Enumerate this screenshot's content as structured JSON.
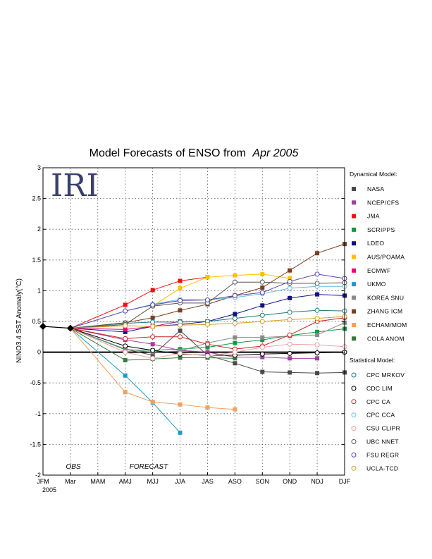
{
  "chart_data": {
    "type": "line",
    "title": "Model Forecasts of ENSO from",
    "title_date": "Apr 2005",
    "logo_text": "IRI",
    "ylabel": "NINO3.4 SST Anomaly(°C)",
    "xlabel": "",
    "year_label": "2005",
    "ylim": [
      -2,
      3
    ],
    "yticks": [
      "-2",
      "-1.5",
      "-1",
      "-0.5",
      "0",
      "0.5",
      "1",
      "1.5",
      "2",
      "2.5",
      "3"
    ],
    "categories": [
      "JFM",
      "Mar",
      "MAM",
      "AMJ",
      "MJJ",
      "JJA",
      "JAS",
      "ASO",
      "SON",
      "OND",
      "NDJ",
      "DJF"
    ],
    "grid": true,
    "annotations": [
      "OBS",
      "FORECAST"
    ],
    "observed": {
      "x": [
        0,
        1
      ],
      "values": [
        0.42,
        0.39
      ],
      "color": "#000000"
    },
    "legend_dynamical_title": "Dynamical Model:",
    "legend_statistical_title": "Statistical Model:",
    "series": [
      {
        "name": "NASA",
        "group": "dynamical",
        "color": "#4a4a4a",
        "values": [
          null,
          0.39,
          null,
          0.05,
          -0.05,
          0.35,
          -0.05,
          -0.18,
          -0.32,
          -0.33,
          -0.34,
          -0.33
        ]
      },
      {
        "name": "NCEP/CFS",
        "group": "dynamical",
        "color": "#a040a0",
        "values": [
          null,
          0.39,
          null,
          0.2,
          0.13,
          0.03,
          0.0,
          -0.08,
          -0.08,
          -0.1,
          -0.1,
          null
        ]
      },
      {
        "name": "JMA",
        "group": "dynamical",
        "color": "#ee1111",
        "values": [
          null,
          0.39,
          null,
          0.77,
          1.01,
          1.16,
          1.22,
          null,
          null,
          null,
          null,
          null
        ]
      },
      {
        "name": "SCRIPPS",
        "group": "dynamical",
        "color": "#119944",
        "values": [
          null,
          0.39,
          null,
          0.04,
          0.03,
          0.05,
          0.08,
          0.15,
          0.2,
          0.27,
          0.33,
          0.38
        ]
      },
      {
        "name": "LDEO",
        "group": "dynamical",
        "color": "#111188",
        "values": [
          null,
          0.39,
          null,
          0.33,
          0.42,
          0.45,
          0.5,
          0.62,
          0.76,
          0.88,
          0.94,
          0.92
        ]
      },
      {
        "name": "AUS/POAMA",
        "group": "dynamical",
        "color": "#ffc000",
        "values": [
          null,
          0.39,
          null,
          0.45,
          0.75,
          1.04,
          1.22,
          1.25,
          1.27,
          1.2,
          null,
          null
        ]
      },
      {
        "name": "ECMWF",
        "group": "dynamical",
        "color": "#ee0077",
        "values": [
          null,
          0.39,
          null,
          0.37,
          0.42,
          0.5,
          null,
          null,
          null,
          null,
          null,
          null
        ]
      },
      {
        "name": "UKMO",
        "group": "dynamical",
        "color": "#2299cc",
        "values": [
          null,
          0.39,
          null,
          -0.38,
          -0.82,
          -1.31,
          null,
          null,
          null,
          null,
          null,
          null
        ]
      },
      {
        "name": "KOREA SNU",
        "group": "dynamical",
        "color": "#8a8a8a",
        "values": [
          null,
          0.39,
          null,
          0.05,
          0.0,
          0.02,
          0.15,
          0.24,
          0.24,
          0.26,
          0.28,
          0.48
        ]
      },
      {
        "name": "ZHANG ICM",
        "group": "dynamical",
        "color": "#7a3f25",
        "values": [
          null,
          0.39,
          null,
          0.48,
          0.56,
          0.68,
          0.78,
          0.92,
          1.05,
          1.33,
          1.61,
          1.76
        ]
      },
      {
        "name": "ECHAM/MOM",
        "group": "dynamical",
        "color": "#f0a060",
        "values": [
          null,
          0.39,
          null,
          -0.65,
          -0.81,
          -0.85,
          -0.9,
          -0.93,
          null,
          null,
          null,
          null
        ]
      },
      {
        "name": "COLA ANOM",
        "group": "dynamical",
        "color": "#3a7a3a",
        "values": [
          null,
          0.39,
          null,
          -0.13,
          -0.11,
          -0.09,
          -0.09,
          -0.1,
          null,
          null,
          null,
          null
        ]
      },
      {
        "name": "CPC MRKOV",
        "group": "statistical",
        "color": "#227777",
        "values": [
          null,
          0.39,
          null,
          0.47,
          0.49,
          0.49,
          0.5,
          0.55,
          0.6,
          0.65,
          0.68,
          0.67
        ]
      },
      {
        "name": "CDC LIM",
        "group": "statistical",
        "color": "#000000",
        "values": [
          null,
          0.39,
          null,
          0.1,
          0.03,
          -0.03,
          -0.05,
          -0.05,
          -0.03,
          -0.02,
          -0.01,
          0.0
        ]
      },
      {
        "name": "CPC CA",
        "group": "statistical",
        "color": "#cc2222",
        "values": [
          null,
          0.39,
          null,
          0.22,
          0.25,
          0.25,
          0.13,
          0.05,
          0.1,
          0.28,
          0.5,
          0.56
        ]
      },
      {
        "name": "CPC CCA",
        "group": "statistical",
        "color": "#66bbdd",
        "values": [
          null,
          0.39,
          null,
          0.67,
          0.78,
          0.86,
          0.85,
          0.89,
          0.95,
          1.04,
          1.07,
          1.07
        ]
      },
      {
        "name": "CSU CLIPR",
        "group": "statistical",
        "color": "#f0a0a0",
        "values": [
          null,
          0.39,
          null,
          0.0,
          -0.1,
          -0.02,
          -0.06,
          0.0,
          0.08,
          0.13,
          0.12,
          0.09
        ]
      },
      {
        "name": "UBC NNET",
        "group": "statistical",
        "color": "#555555",
        "values": [
          null,
          0.39,
          null,
          0.45,
          0.75,
          0.8,
          0.8,
          1.14,
          1.14,
          1.12,
          1.12,
          1.13
        ]
      },
      {
        "name": "FSU REGR",
        "group": "statistical",
        "color": "#5544aa",
        "values": [
          null,
          0.39,
          null,
          0.67,
          0.77,
          0.84,
          0.85,
          0.92,
          0.97,
          1.15,
          1.27,
          1.2
        ]
      },
      {
        "name": "UCLA-TCD",
        "group": "statistical",
        "color": "#d4a020",
        "values": [
          null,
          0.39,
          null,
          0.43,
          0.42,
          0.44,
          0.45,
          0.47,
          0.5,
          0.53,
          0.55,
          0.58
        ]
      }
    ]
  }
}
